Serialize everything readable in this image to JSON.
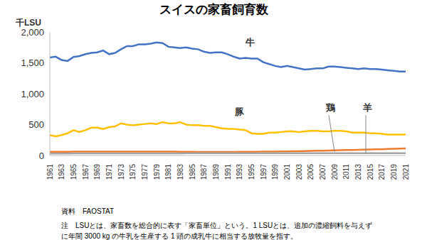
{
  "chart_data": {
    "type": "line",
    "title": "スイスの家畜飼育数",
    "y_label": "千LSU",
    "categories": [
      "1961",
      null,
      "1963",
      null,
      "1965",
      null,
      "1967",
      null,
      "1969",
      null,
      "1971",
      null,
      "1973",
      null,
      "1975",
      null,
      "1977",
      null,
      "1979",
      null,
      "1981",
      null,
      "1983",
      null,
      "1985",
      null,
      "1987",
      null,
      "1989",
      null,
      "1991",
      null,
      "1993",
      null,
      "1995",
      null,
      "1997",
      null,
      "1999",
      null,
      "2001",
      null,
      "2003",
      null,
      "2005",
      null,
      "2007",
      null,
      "2009",
      null,
      "2011",
      null,
      "2013",
      null,
      "2015",
      null,
      "2017",
      null,
      "2019",
      null,
      "2021"
    ],
    "series": [
      {
        "name": "牛",
        "color": "#4472c4",
        "values": [
          1585,
          1600,
          1545,
          1530,
          1595,
          1610,
          1640,
          1660,
          1670,
          1700,
          1640,
          1660,
          1720,
          1770,
          1770,
          1800,
          1800,
          1810,
          1830,
          1820,
          1760,
          1750,
          1740,
          1750,
          1730,
          1720,
          1680,
          1660,
          1670,
          1670,
          1640,
          1600,
          1570,
          1580,
          1570,
          1570,
          1510,
          1480,
          1450,
          1430,
          1450,
          1430,
          1410,
          1390,
          1400,
          1410,
          1410,
          1440,
          1440,
          1430,
          1420,
          1410,
          1400,
          1410,
          1400,
          1400,
          1390,
          1380,
          1370,
          1360,
          1360
        ]
      },
      {
        "name": "豚",
        "color": "#ffc000",
        "values": [
          330,
          310,
          330,
          360,
          410,
          380,
          410,
          450,
          450,
          430,
          460,
          470,
          520,
          500,
          490,
          500,
          510,
          520,
          510,
          540,
          520,
          520,
          540,
          500,
          490,
          490,
          480,
          480,
          460,
          440,
          430,
          430,
          420,
          410,
          360,
          350,
          350,
          370,
          370,
          380,
          390,
          390,
          380,
          390,
          400,
          400,
          390,
          390,
          400,
          400,
          390,
          370,
          370,
          370,
          360,
          360,
          350,
          340,
          340,
          340,
          340
        ]
      },
      {
        "name": "鶏",
        "color": "#ed7d31",
        "values": [
          60,
          60,
          60,
          60,
          62,
          62,
          63,
          63,
          62,
          62,
          62,
          62,
          63,
          63,
          62,
          62,
          63,
          63,
          63,
          63,
          62,
          62,
          60,
          60,
          60,
          58,
          58,
          58,
          58,
          58,
          58,
          58,
          60,
          60,
          60,
          60,
          62,
          62,
          64,
          65,
          66,
          68,
          70,
          72,
          75,
          78,
          78,
          80,
          82,
          85,
          88,
          90,
          92,
          95,
          98,
          100,
          102,
          105,
          108,
          112,
          115
        ]
      },
      {
        "name": "羊",
        "color": "#a5a5a5",
        "values": [
          32,
          32,
          33,
          33,
          34,
          34,
          35,
          35,
          35,
          35,
          35,
          35,
          34,
          34,
          34,
          34,
          34,
          34,
          34,
          34,
          34,
          35,
          35,
          36,
          36,
          37,
          37,
          38,
          38,
          38,
          38,
          38,
          38,
          38,
          38,
          38,
          38,
          38,
          38,
          38,
          38,
          38,
          38,
          38,
          38,
          38,
          38,
          38,
          38,
          38,
          37,
          37,
          37,
          37,
          36,
          36,
          36,
          36,
          36,
          36,
          36
        ]
      }
    ],
    "ylim": [
      0,
      2000
    ],
    "yticks": [
      0,
      500,
      {
        "value": 1000,
        "label": "1,000"
      },
      {
        "value": 1500,
        "label": "1,500"
      },
      {
        "value": 2000,
        "label": "2,000"
      }
    ],
    "grid": false,
    "annotations": [
      "資料　FAOSTAT",
      "注　LSUとは、家畜数を総合的に表す「家畜単位」という。1 LSUとは、追加の濃縮飼料を与えず",
      "に年間 3000 kg の牛乳を生産する 1 頭の成乳牛に相当する放牧量を指す。"
    ]
  }
}
